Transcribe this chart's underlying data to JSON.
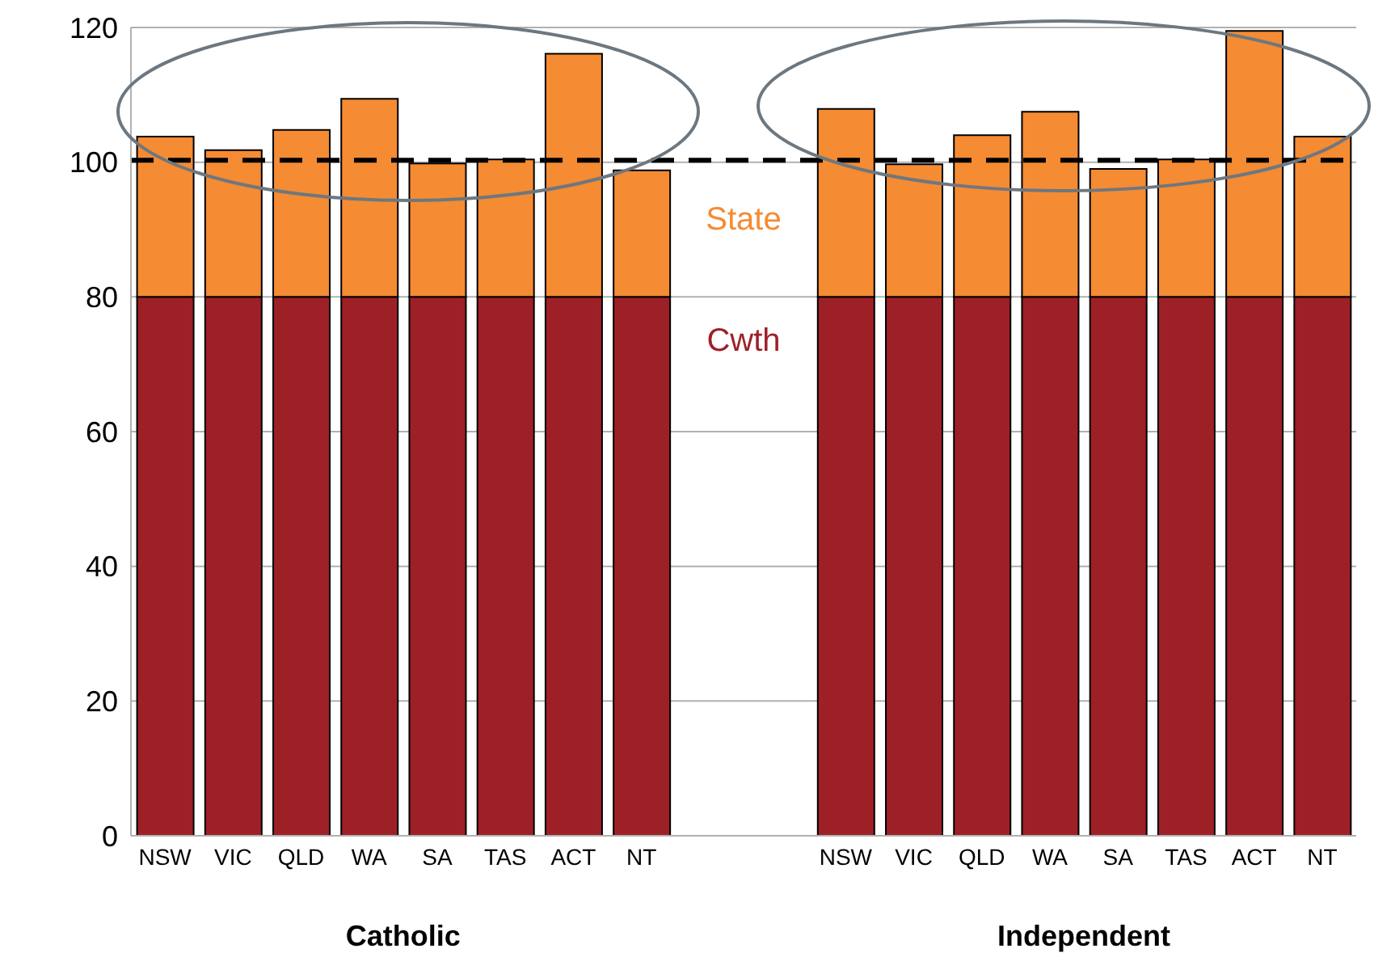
{
  "chart_data": {
    "type": "bar",
    "stacked": true,
    "categories": [
      "NSW",
      "VIC",
      "QLD",
      "WA",
      "SA",
      "TAS",
      "ACT",
      "NT",
      null,
      null,
      "NSW",
      "VIC",
      "QLD",
      "WA",
      "SA",
      "TAS",
      "ACT",
      "NT"
    ],
    "series": [
      {
        "name": "Cwth",
        "color": "#9e2027",
        "values": [
          80,
          80,
          80,
          80,
          80,
          80,
          80,
          80,
          null,
          null,
          80,
          80,
          80,
          80,
          80,
          80,
          80,
          80
        ]
      },
      {
        "name": "State",
        "color": "#f58b32",
        "values": [
          23.8,
          21.8,
          24.8,
          29.4,
          19.8,
          20.4,
          36.1,
          18.8,
          null,
          null,
          27.9,
          19.7,
          24,
          27.5,
          19,
          20.4,
          39.5,
          23.8
        ]
      }
    ],
    "ylim": [
      0,
      120
    ],
    "yticks": [
      0,
      20,
      40,
      60,
      80,
      100,
      120
    ],
    "grid": "y",
    "legend": false,
    "ref_lines": [
      {
        "axis": "y",
        "value": 100.3,
        "color": "#000000",
        "line_style": "dashed"
      }
    ],
    "annotations": [
      "Catholic",
      "Independent"
    ]
  }
}
